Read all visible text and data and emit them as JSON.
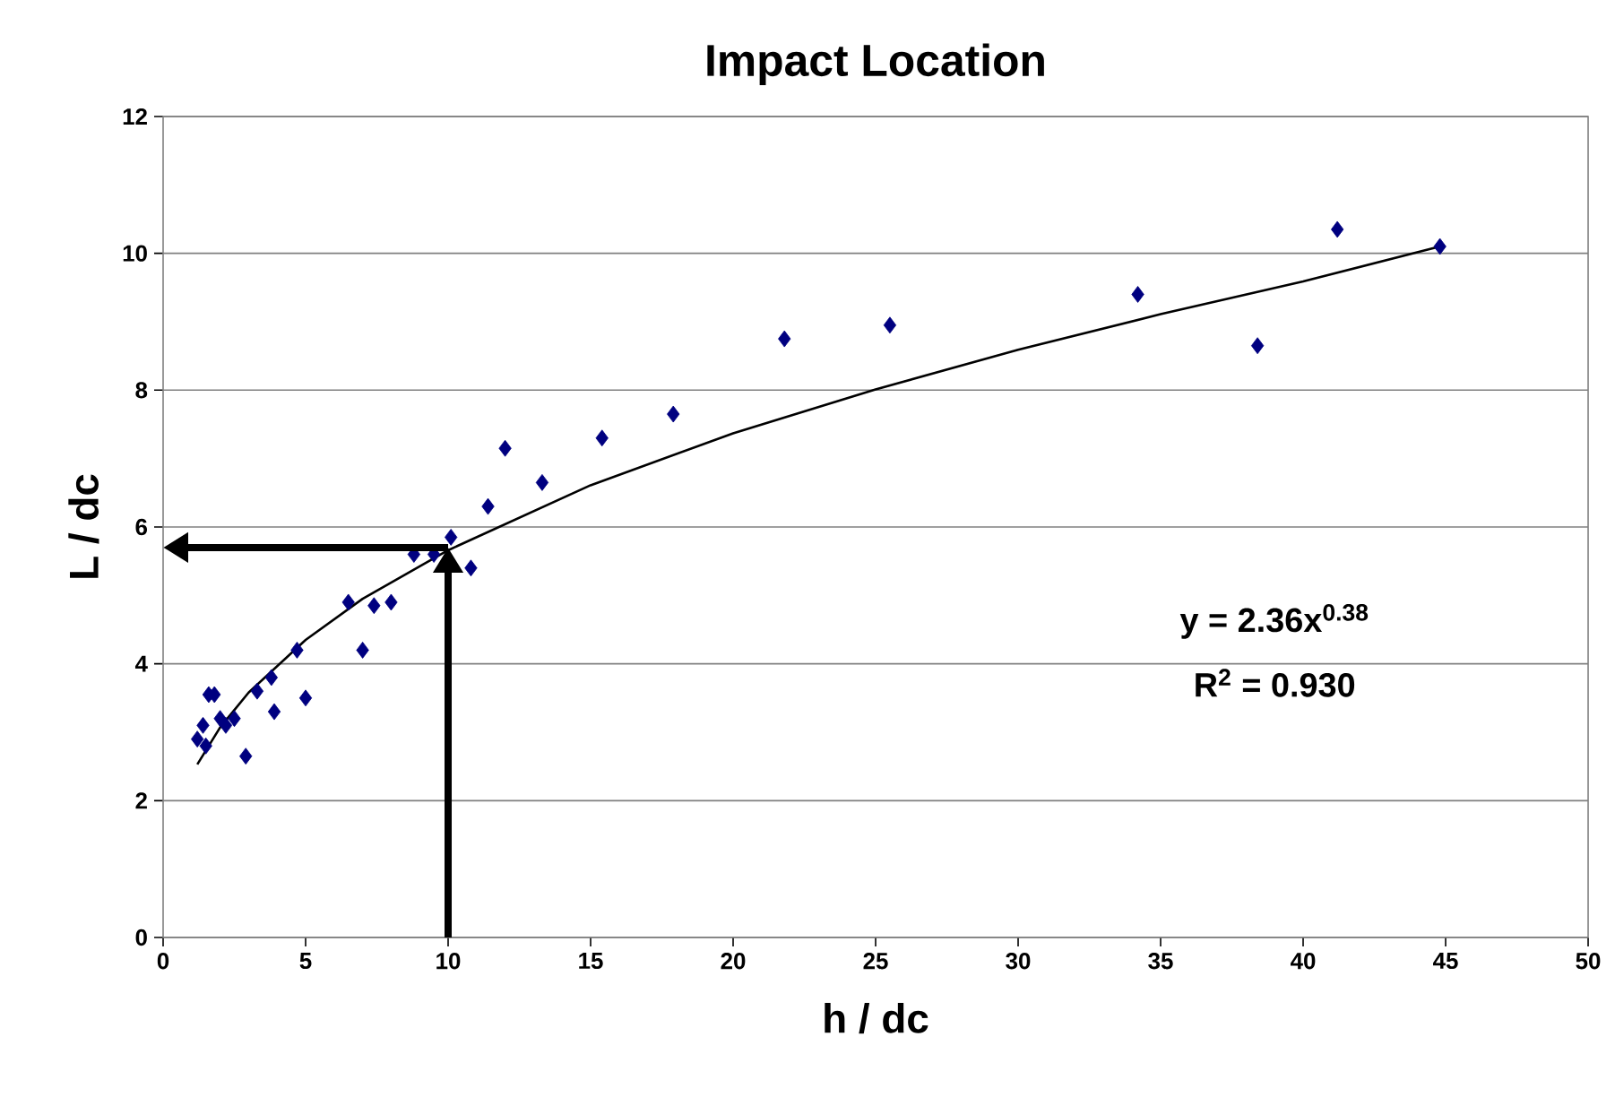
{
  "chart_data": {
    "type": "scatter",
    "title": "Impact Location",
    "xlabel": "h / dc",
    "ylabel": "L / dc",
    "xlim": [
      0,
      50
    ],
    "ylim": [
      0,
      12
    ],
    "xticks": [
      0,
      5,
      10,
      15,
      20,
      25,
      30,
      35,
      40,
      45,
      50
    ],
    "yticks": [
      0,
      2,
      4,
      6,
      8,
      10,
      12
    ],
    "grid": "y",
    "marker": "diamond",
    "series": [
      {
        "color": "#000080",
        "x": [
          1.2,
          1.4,
          1.5,
          1.6,
          1.8,
          2.0,
          2.2,
          2.5,
          2.9,
          3.3,
          3.8,
          3.9,
          4.7,
          5.0,
          6.5,
          7.0,
          7.4,
          8.0,
          8.8,
          9.5,
          10.1,
          10.8,
          11.4,
          12.0,
          13.3,
          15.4,
          17.9,
          21.8,
          25.5,
          34.2,
          38.4,
          41.2,
          44.8
        ],
        "values": [
          2.9,
          3.1,
          2.8,
          3.55,
          3.55,
          3.2,
          3.1,
          3.2,
          2.65,
          3.6,
          3.8,
          3.3,
          4.2,
          3.5,
          4.9,
          4.2,
          4.85,
          4.9,
          5.6,
          5.6,
          5.85,
          5.4,
          6.3,
          7.15,
          6.65,
          7.3,
          7.65,
          8.75,
          8.95,
          9.4,
          8.65,
          10.35,
          10.1
        ]
      },
      {
        "type": "line",
        "color": "#000000",
        "marker": "none",
        "x": [
          1.2,
          2,
          3,
          5,
          7,
          10,
          15,
          20,
          25,
          30,
          35,
          40,
          44.8
        ],
        "values": [
          2.53,
          3.07,
          3.58,
          4.35,
          4.95,
          5.66,
          6.61,
          7.37,
          8.01,
          8.59,
          9.11,
          9.59,
          10.1
        ]
      }
    ],
    "ref_lines": [
      {
        "axis": "x",
        "value": 10,
        "color": "#000000"
      },
      {
        "axis": "y",
        "value": 5.7,
        "color": "#000000"
      }
    ],
    "annotations": [
      "y = 2.36x$^{0.38}$",
      "R$^{2}$ = 0.930"
    ]
  }
}
